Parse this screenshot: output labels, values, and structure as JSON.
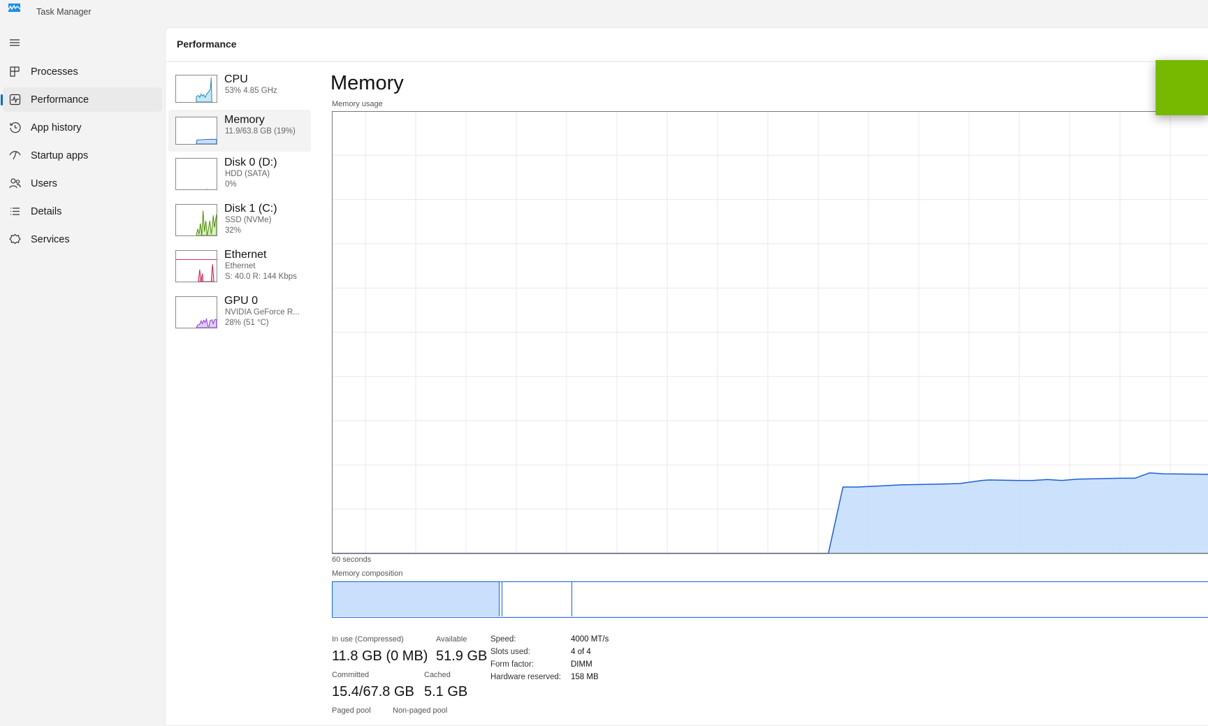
{
  "window": {
    "title": "Task Manager"
  },
  "sidebar": {
    "items": [
      {
        "label": "Processes",
        "icon": "processes-icon"
      },
      {
        "label": "Performance",
        "icon": "performance-icon",
        "active": true
      },
      {
        "label": "App history",
        "icon": "app-history-icon"
      },
      {
        "label": "Startup apps",
        "icon": "startup-apps-icon"
      },
      {
        "label": "Users",
        "icon": "users-icon"
      },
      {
        "label": "Details",
        "icon": "details-icon"
      },
      {
        "label": "Services",
        "icon": "services-icon"
      }
    ]
  },
  "header": {
    "title": "Performance"
  },
  "resources": [
    {
      "name": "CPU",
      "line1": "53%  4.85 GHz",
      "line2": "",
      "color": "#1a86b0"
    },
    {
      "name": "Memory",
      "line1": "11.9/63.8 GB (19%)",
      "line2": "",
      "color": "#1a5fd6",
      "active": true
    },
    {
      "name": "Disk 0 (D:)",
      "line1": "HDD (SATA)",
      "line2": "0%",
      "color": "#4d8a00"
    },
    {
      "name": "Disk 1 (C:)",
      "line1": "SSD (NVMe)",
      "line2": "32%",
      "color": "#4d8a00"
    },
    {
      "name": "Ethernet",
      "line1": "Ethernet",
      "line2": "S: 40.0  R: 144 Kbps",
      "color": "#c8174f"
    },
    {
      "name": "GPU 0",
      "line1": "NVIDIA GeForce R...",
      "line2": "28%  (51 °C)",
      "color": "#8b2be0"
    }
  ],
  "memory": {
    "heading": "Memory",
    "usage_label": "Memory usage",
    "time_label": "60 seconds",
    "composition_label": "Memory composition",
    "composition": {
      "in_use_fraction": 0.19,
      "modified_fraction": 0.003,
      "standby_fraction": 0.08
    },
    "stats": {
      "in_use_label": "In use (Compressed)",
      "in_use_value": "11.8 GB (0 MB)",
      "available_label": "Available",
      "available_value": "51.9 GB",
      "committed_label": "Committed",
      "committed_value": "15.4/67.8 GB",
      "cached_label": "Cached",
      "cached_value": "5.1 GB",
      "paged_pool_label": "Paged pool",
      "non_paged_pool_label": "Non-paged pool"
    },
    "details": [
      {
        "label": "Speed:",
        "value": "4000 MT/s"
      },
      {
        "label": "Slots used:",
        "value": "4 of 4"
      },
      {
        "label": "Form factor:",
        "value": "DIMM"
      },
      {
        "label": "Hardware reserved:",
        "value": "158 MB"
      }
    ]
  },
  "colors": {
    "accent": "#0f6cbd",
    "memory_line": "#1a5fd6",
    "memory_fill": "#c9dffc",
    "overlay": "#76b900"
  },
  "chart_data": {
    "type": "area",
    "xlabel": "60 seconds",
    "ylabel": "Memory usage",
    "xlim": [
      0,
      60
    ],
    "ylim": [
      0,
      100
    ],
    "grid": true,
    "points": [
      [
        0,
        0
      ],
      [
        34,
        0
      ],
      [
        35,
        15.0
      ],
      [
        36,
        15.0
      ],
      [
        39,
        15.5
      ],
      [
        42,
        15.7
      ],
      [
        43,
        15.8
      ],
      [
        44.5,
        16.5
      ],
      [
        45,
        16.6
      ],
      [
        47,
        16.5
      ],
      [
        48,
        16.5
      ],
      [
        49,
        16.7
      ],
      [
        50,
        16.5
      ],
      [
        51,
        16.8
      ],
      [
        54,
        17.0
      ],
      [
        55,
        17.0
      ],
      [
        56,
        18.2
      ],
      [
        57,
        18.0
      ],
      [
        60,
        17.9
      ]
    ]
  }
}
